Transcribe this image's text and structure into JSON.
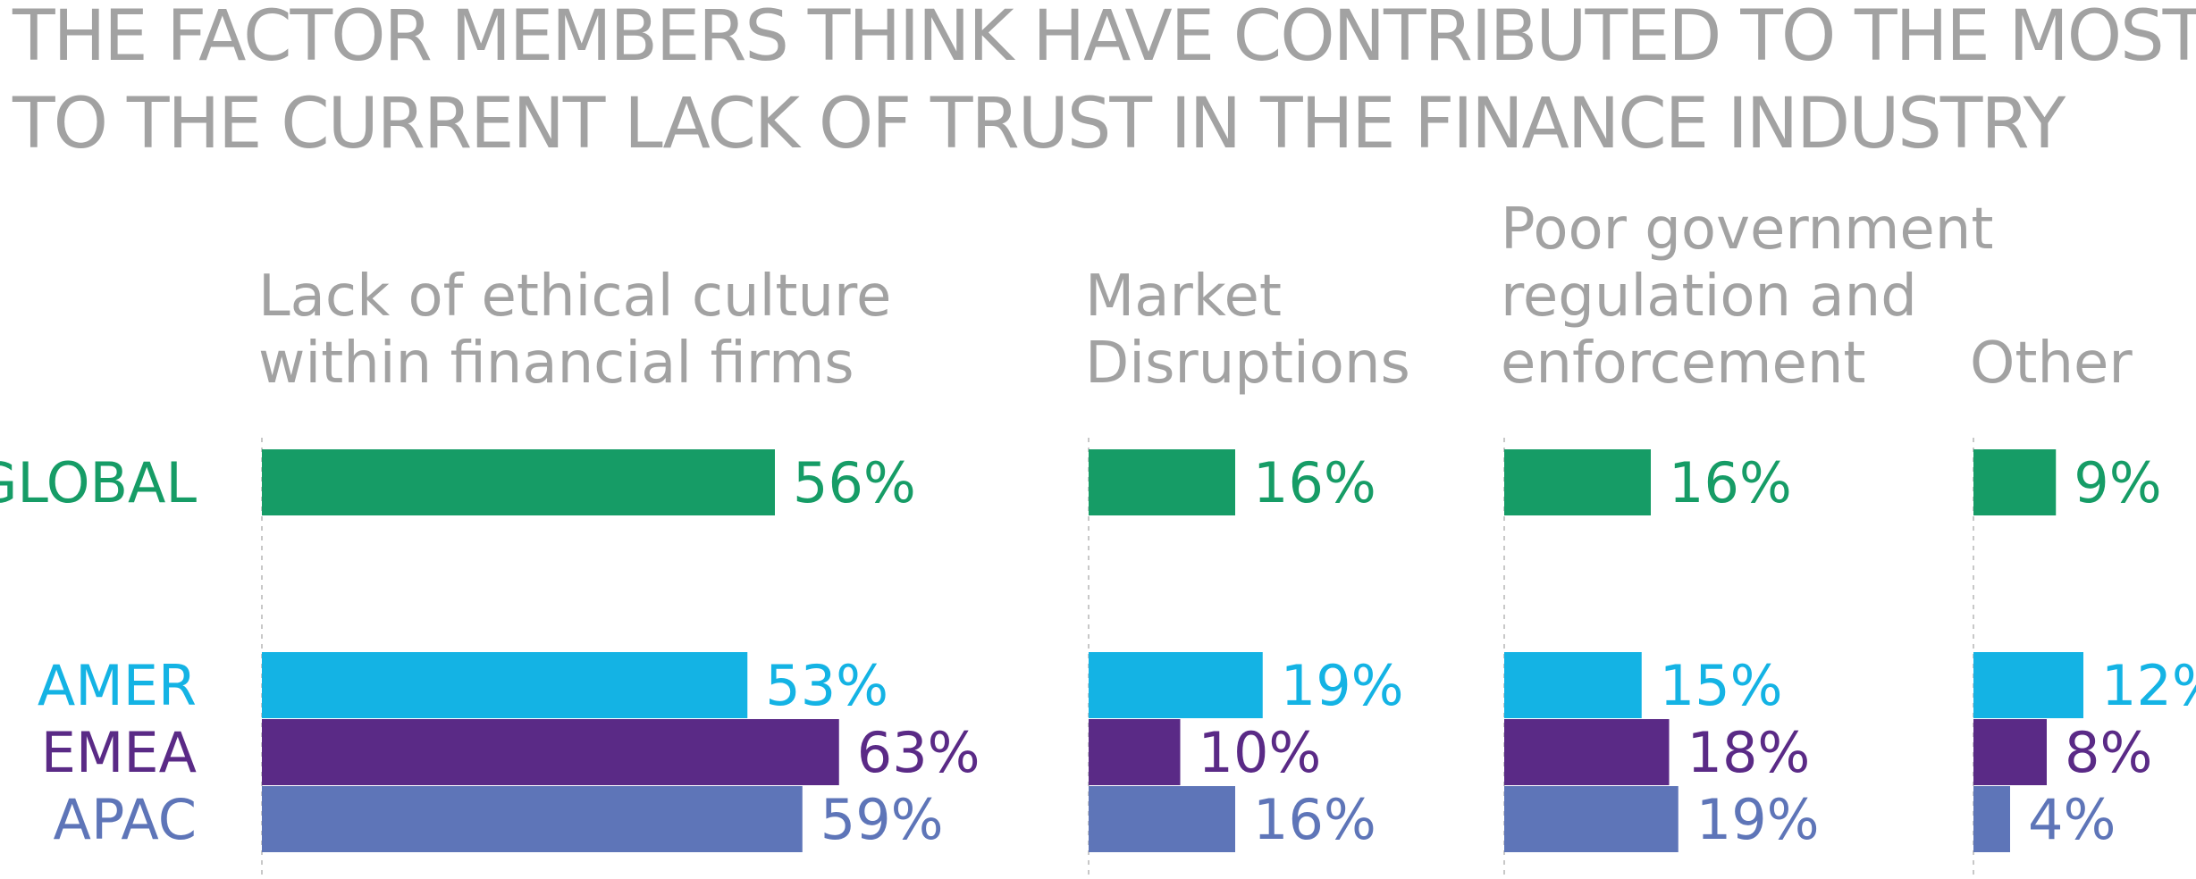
{
  "chart_data": {
    "type": "bar",
    "orientation": "horizontal",
    "title": "THE FACTOR MEMBERS THINK HAVE CONTRIBUTED TO THE MOST TO THE CURRENT LACK OF TRUST IN THE FINANCE INDUSTRY",
    "title_lines": [
      "THE FACTOR MEMBERS THINK HAVE CONTRIBUTED TO THE MOST",
      "TO THE CURRENT LACK OF TRUST IN THE FINANCE INDUSTRY"
    ],
    "categories": [
      {
        "name": "Lack of ethical culture within financial firms",
        "lines": [
          "Lack of ethical culture",
          "within financial firms"
        ]
      },
      {
        "name": "Market Disruptions",
        "lines": [
          "Market",
          "Disruptions"
        ]
      },
      {
        "name": "Poor government regulation and enforcement",
        "lines": [
          "Poor government",
          "regulation and",
          "enforcement"
        ]
      },
      {
        "name": "Other",
        "lines": [
          "Other"
        ]
      }
    ],
    "series": [
      {
        "name": "GLOBAL",
        "color": "#169c66",
        "values": [
          56,
          16,
          16,
          9
        ]
      },
      {
        "name": "AMER",
        "color": "#14b3e4",
        "values": [
          53,
          19,
          15,
          12
        ]
      },
      {
        "name": "EMEA",
        "color": "#5a2a86",
        "values": [
          63,
          10,
          18,
          8
        ]
      },
      {
        "name": "APAC",
        "color": "#5e75b8",
        "values": [
          59,
          16,
          19,
          4
        ]
      }
    ],
    "value_suffix": "%",
    "grid": false,
    "legend": "left row labels"
  }
}
